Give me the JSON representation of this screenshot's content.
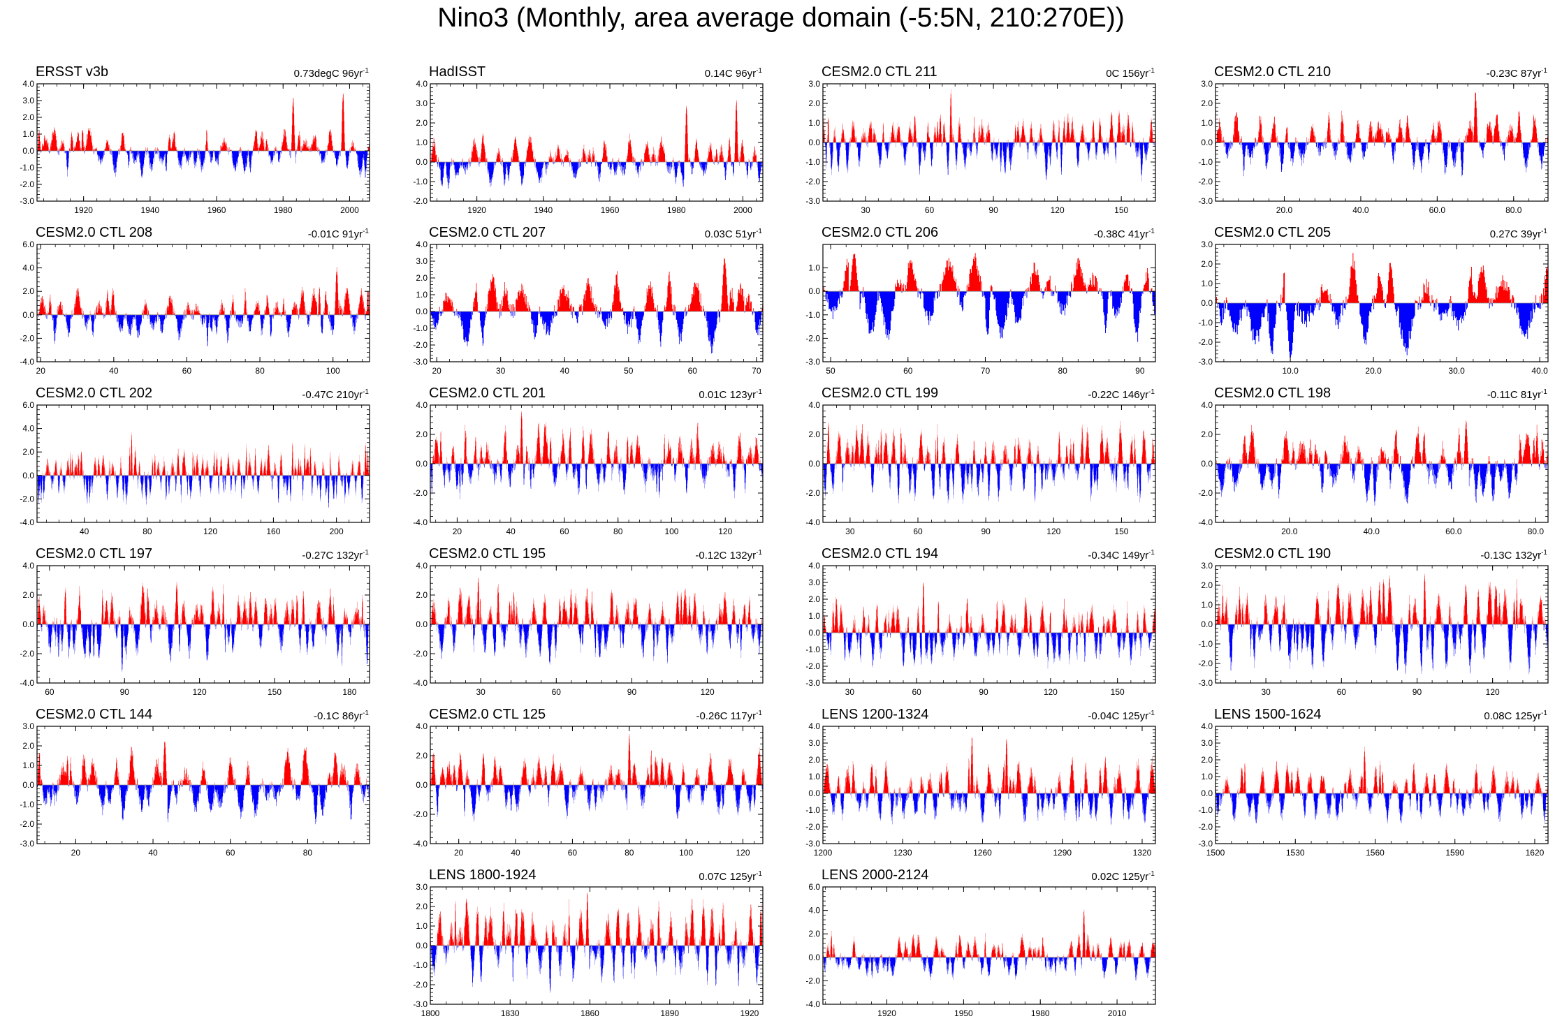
{
  "title": "Nino3 (Monthly, area average domain (-5:5N, 210:270E))",
  "colors": {
    "positive": "#ff0000",
    "negative": "#0000ff",
    "axis": "#000000"
  },
  "chart_data": [
    {
      "type": "bar",
      "title": "ERSST v3b",
      "trend": "0.73degC",
      "years": "96yr",
      "unit_sup": "-1",
      "xlim": [
        1906,
        2006
      ],
      "ylim": [
        -3,
        4
      ],
      "yticks": [
        -3,
        -2,
        -1,
        0,
        1,
        2,
        3,
        4
      ],
      "ytick_labels": [
        "-3.0",
        "-2.0",
        "-1.0",
        "0.0",
        "1.0",
        "2.0",
        "3.0",
        "4.0"
      ],
      "xticks": [
        1920,
        1940,
        1960,
        1980,
        2000
      ],
      "xtick_labels": [
        "1920",
        "1940",
        "1960",
        "1980",
        "2000"
      ],
      "amp_pos": 1.2,
      "amp_neg": 1.3,
      "seed": 11,
      "peaks": [
        [
          1983,
          3.3
        ],
        [
          1998,
          3.6
        ]
      ]
    },
    {
      "type": "bar",
      "title": "HadISST",
      "trend": "0.14C",
      "years": "96yr",
      "unit_sup": "-1",
      "xlim": [
        1906,
        2006
      ],
      "ylim": [
        -2,
        4
      ],
      "yticks": [
        -2,
        -1,
        0,
        1,
        2,
        3,
        4
      ],
      "ytick_labels": [
        "-2.0",
        "-1.0",
        "0.0",
        "1.0",
        "2.0",
        "3.0",
        "4.0"
      ],
      "xticks": [
        1920,
        1940,
        1960,
        1980,
        2000
      ],
      "xtick_labels": [
        "1920",
        "1940",
        "1960",
        "1980",
        "2000"
      ],
      "amp_pos": 1.2,
      "amp_neg": 1.1,
      "seed": 12,
      "peaks": [
        [
          1983,
          3.0
        ],
        [
          1998,
          3.3
        ]
      ]
    },
    {
      "type": "bar",
      "title": "CESM2.0 CTL 211",
      "trend": "0C",
      "years": "156yr",
      "unit_sup": "-1",
      "xlim": [
        10,
        166
      ],
      "ylim": [
        -3,
        3
      ],
      "yticks": [
        -3,
        -2,
        -1,
        0,
        1,
        2,
        3
      ],
      "ytick_labels": [
        "-3.0",
        "-2.0",
        "-1.0",
        "0.0",
        "1.0",
        "2.0",
        "3.0"
      ],
      "xticks": [
        30,
        60,
        90,
        120,
        150
      ],
      "xtick_labels": [
        "30",
        "60",
        "90",
        "120",
        "150"
      ],
      "amp_pos": 1.3,
      "amp_neg": 1.6,
      "seed": 13,
      "peaks": [
        [
          70,
          2.8
        ]
      ]
    },
    {
      "type": "bar",
      "title": "CESM2.0 CTL 210",
      "trend": "-0.23C",
      "years": "87yr",
      "unit_sup": "-1",
      "xlim": [
        2,
        89
      ],
      "ylim": [
        -3,
        3
      ],
      "yticks": [
        -3,
        -2,
        -1,
        0,
        1,
        2,
        3
      ],
      "ytick_labels": [
        "-3.0",
        "-2.0",
        "-1.0",
        "0.0",
        "1.0",
        "2.0",
        "3.0"
      ],
      "xticks": [
        20,
        40,
        60,
        80
      ],
      "xtick_labels": [
        "20.0",
        "40.0",
        "60.0",
        "80.0"
      ],
      "amp_pos": 1.4,
      "amp_neg": 1.4,
      "seed": 14,
      "peaks": [
        [
          70,
          2.7
        ]
      ]
    },
    {
      "type": "bar",
      "title": "CESM2.0 CTL 208",
      "trend": "-0.01C",
      "years": "91yr",
      "unit_sup": "-1",
      "xlim": [
        19,
        110
      ],
      "ylim": [
        -4,
        6
      ],
      "yticks": [
        -4,
        -2,
        0,
        2,
        4,
        6
      ],
      "ytick_labels": [
        "-4.0",
        "-2.0",
        "0.0",
        "2.0",
        "4.0",
        "6.0"
      ],
      "xticks": [
        20,
        40,
        60,
        80,
        100
      ],
      "xtick_labels": [
        "20",
        "40",
        "60",
        "80",
        "100"
      ],
      "amp_pos": 2.0,
      "amp_neg": 2.2,
      "seed": 15,
      "peaks": [
        [
          101,
          4.1
        ]
      ]
    },
    {
      "type": "bar",
      "title": "CESM2.0 CTL 207",
      "trend": "0.03C",
      "years": "51yr",
      "unit_sup": "-1",
      "xlim": [
        19,
        71
      ],
      "ylim": [
        -3,
        4
      ],
      "yticks": [
        -3,
        -2,
        -1,
        0,
        1,
        2,
        3,
        4
      ],
      "ytick_labels": [
        "-3.0",
        "-2.0",
        "-1.0",
        "0.0",
        "1.0",
        "2.0",
        "3.0",
        "4.0"
      ],
      "xticks": [
        20,
        30,
        40,
        50,
        60,
        70
      ],
      "xtick_labels": [
        "20",
        "30",
        "40",
        "50",
        "60",
        "70"
      ],
      "amp_pos": 2.0,
      "amp_neg": 2.0,
      "seed": 16,
      "peaks": [
        [
          65,
          3.3
        ]
      ]
    },
    {
      "type": "bar",
      "title": "CESM2.0 CTL 206",
      "trend": "-0.38C",
      "years": "41yr",
      "unit_sup": "-1",
      "xlim": [
        49,
        92
      ],
      "ylim": [
        -3,
        2
      ],
      "yticks": [
        -3,
        -2,
        -1,
        0,
        1
      ],
      "ytick_labels": [
        "-3.0",
        "-2.0",
        "-1.0",
        "0.0",
        "1.0"
      ],
      "xticks": [
        50,
        60,
        70,
        80,
        90
      ],
      "xtick_labels": [
        "50",
        "60",
        "70",
        "80",
        "90"
      ],
      "amp_pos": 1.4,
      "amp_neg": 2.0,
      "seed": 17,
      "peaks": [
        [
          53,
          1.7
        ]
      ]
    },
    {
      "type": "bar",
      "title": "CESM2.0 CTL 205",
      "trend": "0.27C",
      "years": "39yr",
      "unit_sup": "-1",
      "xlim": [
        1,
        41
      ],
      "ylim": [
        -3,
        3
      ],
      "yticks": [
        -3,
        -2,
        -1,
        0,
        1,
        2,
        3
      ],
      "ytick_labels": [
        "-3.0",
        "-2.0",
        "-1.0",
        "0.0",
        "1.0",
        "2.0",
        "3.0"
      ],
      "xticks": [
        10,
        20,
        30,
        40
      ],
      "xtick_labels": [
        "10.0",
        "20.0",
        "30.0",
        "40.0"
      ],
      "amp_pos": 2.0,
      "amp_neg": 2.2,
      "seed": 18,
      "peaks": [
        [
          10,
          -3.0
        ]
      ]
    },
    {
      "type": "bar",
      "title": "CESM2.0 CTL 202",
      "trend": "-0.47C",
      "years": "210yr",
      "unit_sup": "-1",
      "xlim": [
        10,
        221
      ],
      "ylim": [
        -4,
        6
      ],
      "yticks": [
        -4,
        -2,
        0,
        2,
        4,
        6
      ],
      "ytick_labels": [
        "-4.0",
        "-2.0",
        "0.0",
        "2.0",
        "4.0",
        "6.0"
      ],
      "xticks": [
        40,
        80,
        120,
        160,
        200
      ],
      "xtick_labels": [
        "40",
        "80",
        "120",
        "160",
        "200"
      ],
      "amp_pos": 2.2,
      "amp_neg": 2.0,
      "seed": 19,
      "peaks": [
        [
          70,
          3.8
        ],
        [
          195,
          -3.0
        ]
      ]
    },
    {
      "type": "bar",
      "title": "CESM2.0 CTL 201",
      "trend": "0.01C",
      "years": "123yr",
      "unit_sup": "-1",
      "xlim": [
        10,
        134
      ],
      "ylim": [
        -4,
        4
      ],
      "yticks": [
        -4,
        -2,
        0,
        2,
        4
      ],
      "ytick_labels": [
        "-4.0",
        "-2.0",
        "0.0",
        "2.0",
        "4.0"
      ],
      "xticks": [
        20,
        40,
        60,
        80,
        100,
        120
      ],
      "xtick_labels": [
        "20",
        "40",
        "60",
        "80",
        "100",
        "120"
      ],
      "amp_pos": 2.3,
      "amp_neg": 1.8,
      "seed": 20,
      "peaks": [
        [
          44,
          3.7
        ]
      ]
    },
    {
      "type": "bar",
      "title": "CESM2.0 CTL 199",
      "trend": "-0.22C",
      "years": "146yr",
      "unit_sup": "-1",
      "xlim": [
        18,
        165
      ],
      "ylim": [
        -4,
        4
      ],
      "yticks": [
        -4,
        -2,
        0,
        2,
        4
      ],
      "ytick_labels": [
        "-4.0",
        "-2.0",
        "0.0",
        "2.0",
        "4.0"
      ],
      "xticks": [
        30,
        60,
        90,
        120,
        150
      ],
      "xtick_labels": [
        "30",
        "60",
        "90",
        "120",
        "150"
      ],
      "amp_pos": 2.3,
      "amp_neg": 2.2,
      "seed": 21,
      "peaks": []
    },
    {
      "type": "bar",
      "title": "CESM2.0 CTL 198",
      "trend": "-0.11C",
      "years": "81yr",
      "unit_sup": "-1",
      "xlim": [
        2,
        83
      ],
      "ylim": [
        -4,
        4
      ],
      "yticks": [
        -4,
        -2,
        0,
        2,
        4
      ],
      "ytick_labels": [
        "-4.0",
        "-2.0",
        "0.0",
        "2.0",
        "4.0"
      ],
      "xticks": [
        20,
        40,
        60,
        80
      ],
      "xtick_labels": [
        "20.0",
        "40.0",
        "60.0",
        "80.0"
      ],
      "amp_pos": 2.4,
      "amp_neg": 2.3,
      "seed": 22,
      "peaks": [
        [
          63,
          3.0
        ]
      ]
    },
    {
      "type": "bar",
      "title": "CESM2.0 CTL 197",
      "trend": "-0.27C",
      "years": "132yr",
      "unit_sup": "-1",
      "xlim": [
        55,
        188
      ],
      "ylim": [
        -4,
        4
      ],
      "yticks": [
        -4,
        -2,
        0,
        2,
        4
      ],
      "ytick_labels": [
        "-4.0",
        "-2.0",
        "0.0",
        "2.0",
        "4.0"
      ],
      "xticks": [
        60,
        90,
        120,
        150,
        180
      ],
      "xtick_labels": [
        "60",
        "90",
        "120",
        "150",
        "180"
      ],
      "amp_pos": 2.3,
      "amp_neg": 2.3,
      "seed": 23,
      "peaks": [
        [
          89,
          -3.3
        ],
        [
          187,
          -3.0
        ]
      ]
    },
    {
      "type": "bar",
      "title": "CESM2.0 CTL 195",
      "trend": "-0.12C",
      "years": "132yr",
      "unit_sup": "-1",
      "xlim": [
        10,
        142
      ],
      "ylim": [
        -4,
        4
      ],
      "yticks": [
        -4,
        -2,
        0,
        2,
        4
      ],
      "ytick_labels": [
        "-4.0",
        "-2.0",
        "0.0",
        "2.0",
        "4.0"
      ],
      "xticks": [
        30,
        60,
        90,
        120
      ],
      "xtick_labels": [
        "30",
        "60",
        "90",
        "120"
      ],
      "amp_pos": 2.3,
      "amp_neg": 2.3,
      "seed": 24,
      "peaks": [
        [
          29,
          3.3
        ]
      ]
    },
    {
      "type": "bar",
      "title": "CESM2.0 CTL 194",
      "trend": "-0.34C",
      "years": "149yr",
      "unit_sup": "-1",
      "xlim": [
        18,
        167
      ],
      "ylim": [
        -3,
        4
      ],
      "yticks": [
        -3,
        -2,
        -1,
        0,
        1,
        2,
        3,
        4
      ],
      "ytick_labels": [
        "-3.0",
        "-2.0",
        "-1.0",
        "0.0",
        "1.0",
        "2.0",
        "3.0",
        "4.0"
      ],
      "xticks": [
        30,
        60,
        90,
        120,
        150
      ],
      "xtick_labels": [
        "30",
        "60",
        "90",
        "120",
        "150"
      ],
      "amp_pos": 1.8,
      "amp_neg": 1.8,
      "seed": 25,
      "peaks": [
        [
          63,
          3.3
        ]
      ]
    },
    {
      "type": "bar",
      "title": "CESM2.0 CTL 190",
      "trend": "-0.13C",
      "years": "132yr",
      "unit_sup": "-1",
      "xlim": [
        10,
        142
      ],
      "ylim": [
        -3,
        3
      ],
      "yticks": [
        -3,
        -2,
        -1,
        0,
        1,
        2,
        3
      ],
      "ytick_labels": [
        "-3.0",
        "-2.0",
        "-1.0",
        "0.0",
        "1.0",
        "2.0",
        "3.0"
      ],
      "xticks": [
        30,
        60,
        90,
        120
      ],
      "xtick_labels": [
        "30",
        "60",
        "90",
        "120"
      ],
      "amp_pos": 2.0,
      "amp_neg": 2.0,
      "seed": 26,
      "peaks": [
        [
          93,
          2.6
        ]
      ]
    },
    {
      "type": "bar",
      "title": "CESM2.0 CTL 144",
      "trend": "-0.1C",
      "years": "86yr",
      "unit_sup": "-1",
      "xlim": [
        10,
        96
      ],
      "ylim": [
        -3,
        3
      ],
      "yticks": [
        -3,
        -2,
        -1,
        0,
        1,
        2,
        3
      ],
      "ytick_labels": [
        "-3.0",
        "-2.0",
        "-1.0",
        "0.0",
        "1.0",
        "2.0",
        "3.0"
      ],
      "xticks": [
        20,
        40,
        60,
        80
      ],
      "xtick_labels": [
        "20",
        "40",
        "60",
        "80"
      ],
      "amp_pos": 1.6,
      "amp_neg": 1.6,
      "seed": 27,
      "peaks": [
        [
          43,
          2.4
        ]
      ]
    },
    {
      "type": "bar",
      "title": "CESM2.0 CTL 125",
      "trend": "-0.26C",
      "years": "117yr",
      "unit_sup": "-1",
      "xlim": [
        10,
        127
      ],
      "ylim": [
        -4,
        4
      ],
      "yticks": [
        -4,
        -2,
        0,
        2,
        4
      ],
      "ytick_labels": [
        "-4.0",
        "-2.0",
        "0.0",
        "2.0",
        "4.0"
      ],
      "xticks": [
        20,
        40,
        60,
        80,
        100,
        120
      ],
      "xtick_labels": [
        "20",
        "40",
        "60",
        "80",
        "100",
        "120"
      ],
      "amp_pos": 2.0,
      "amp_neg": 2.0,
      "seed": 28,
      "peaks": [
        [
          80,
          3.5
        ]
      ]
    },
    {
      "type": "bar",
      "title": "LENS 1200-1324",
      "trend": "-0.04C",
      "years": "125yr",
      "unit_sup": "-1",
      "xlim": [
        1200,
        1325
      ],
      "ylim": [
        -3,
        4
      ],
      "yticks": [
        -3,
        -2,
        -1,
        0,
        1,
        2,
        3,
        4
      ],
      "ytick_labels": [
        "-3.0",
        "-2.0",
        "-1.0",
        "0.0",
        "1.0",
        "2.0",
        "3.0",
        "4.0"
      ],
      "xticks": [
        1200,
        1230,
        1260,
        1290,
        1320
      ],
      "xtick_labels": [
        "1200",
        "1230",
        "1260",
        "1290",
        "1320"
      ],
      "amp_pos": 1.8,
      "amp_neg": 1.5,
      "seed": 29,
      "peaks": [
        [
          1256,
          3.6
        ],
        [
          1269,
          3.5
        ]
      ]
    },
    {
      "type": "bar",
      "title": "LENS 1500-1624",
      "trend": "0.08C",
      "years": "125yr",
      "unit_sup": "-1",
      "xlim": [
        1500,
        1625
      ],
      "ylim": [
        -3,
        4
      ],
      "yticks": [
        -3,
        -2,
        -1,
        0,
        1,
        2,
        3,
        4
      ],
      "ytick_labels": [
        "-3.0",
        "-2.0",
        "-1.0",
        "0.0",
        "1.0",
        "2.0",
        "3.0",
        "4.0"
      ],
      "xticks": [
        1500,
        1530,
        1560,
        1590,
        1620
      ],
      "xtick_labels": [
        "1500",
        "1530",
        "1560",
        "1590",
        "1620"
      ],
      "amp_pos": 1.6,
      "amp_neg": 1.5,
      "seed": 30,
      "peaks": [
        [
          1556,
          2.8
        ]
      ]
    },
    {
      "type": "bar",
      "title": "LENS 1800-1924",
      "trend": "0.07C",
      "years": "125yr",
      "unit_sup": "-1",
      "xlim": [
        1800,
        1925
      ],
      "ylim": [
        -3,
        3
      ],
      "yticks": [
        -3,
        -2,
        -1,
        0,
        1,
        2,
        3
      ],
      "ytick_labels": [
        "-3.0",
        "-2.0",
        "-1.0",
        "0.0",
        "1.0",
        "2.0",
        "3.0"
      ],
      "xticks": [
        1800,
        1830,
        1860,
        1890,
        1920
      ],
      "xtick_labels": [
        "1800",
        "1830",
        "1860",
        "1890",
        "1920"
      ],
      "amp_pos": 2.0,
      "amp_neg": 1.8,
      "seed": 31,
      "peaks": [
        [
          1859,
          2.8
        ],
        [
          1845,
          -2.5
        ]
      ]
    },
    {
      "type": "bar",
      "title": "LENS 2000-2124",
      "trend": "0.02C",
      "years": "125yr",
      "unit_sup": "-1",
      "xlim": [
        1895,
        2025
      ],
      "ylim": [
        -4,
        6
      ],
      "yticks": [
        -4,
        -2,
        0,
        2,
        4,
        6
      ],
      "ytick_labels": [
        "-4.0",
        "-2.0",
        "0.0",
        "2.0",
        "4.0",
        "6.0"
      ],
      "xticks": [
        1920,
        1950,
        1980,
        2010
      ],
      "xtick_labels": [
        "1920",
        "1950",
        "1980",
        "2010"
      ],
      "amp_pos": 1.8,
      "amp_neg": 1.6,
      "seed": 32,
      "peaks": [
        [
          1997,
          4.3
        ]
      ]
    }
  ]
}
